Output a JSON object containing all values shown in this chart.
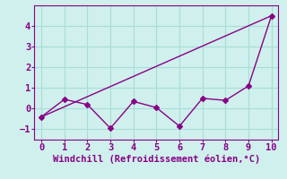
{
  "xlabel": "Windchill (Refroidissement éolien,°C)",
  "bg_color": "#cff0ec",
  "line_color": "#880088",
  "line1_x": [
    0,
    1,
    2,
    3,
    4,
    5,
    6,
    7,
    8,
    9,
    10
  ],
  "line1_y": [
    -0.4,
    0.45,
    0.2,
    -0.95,
    0.35,
    0.05,
    -0.85,
    0.5,
    0.4,
    1.1,
    4.5
  ],
  "line2_x": [
    0,
    10
  ],
  "line2_y": [
    -0.4,
    4.5
  ],
  "xlim": [
    -0.3,
    10.3
  ],
  "ylim": [
    -1.5,
    5.0
  ],
  "yticks": [
    -1,
    0,
    1,
    2,
    3,
    4
  ],
  "xticks": [
    0,
    1,
    2,
    3,
    4,
    5,
    6,
    7,
    8,
    9,
    10
  ],
  "grid_color": "#a8ddd8",
  "marker": "D",
  "markersize": 3,
  "linewidth": 1.0,
  "tick_labelsize": 7.5,
  "xlabel_fontsize": 7.5
}
